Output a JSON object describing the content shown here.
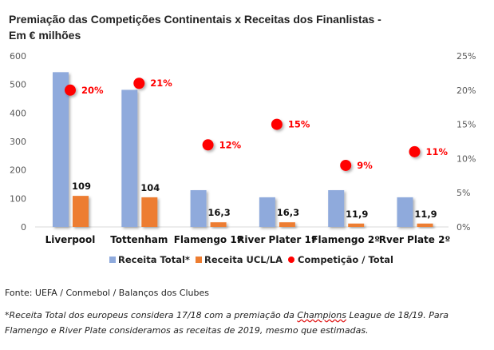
{
  "title_line1": "Premiação das Competições Continentais x Receitas dos Finanlistas -",
  "title_line2": "Em € milhões",
  "source": "Fonte: UEFA / Conmebol / Balanços dos Clubes",
  "note_part1": "*Receita Total dos europeus considera 17/18 com a premiação da ",
  "note_underlined": "Champions",
  "note_part2": " League de 18/19. Para Flamengo e River Plate consideramos as receitas de 2019, mesmo que estimadas.",
  "chart_data": {
    "type": "bar",
    "title": "Premiação das Competições Continentais x Receitas dos Finanlistas - Em € milhões",
    "categories": [
      "Liverpool",
      "Tottenham",
      "Flamengo 1º",
      "River Plater 1º",
      "Flamengo 2º",
      "Rver Plate 2º"
    ],
    "series": [
      {
        "name": "Receita Total*",
        "type": "bar",
        "axis": "left",
        "color": "#8faadc",
        "values": [
          543,
          481,
          129,
          104,
          129,
          104
        ]
      },
      {
        "name": "Receita UCL/LA",
        "type": "bar",
        "axis": "left",
        "color": "#ed7d31",
        "values": [
          109,
          104,
          16.3,
          16.3,
          11.9,
          11.9
        ],
        "labels": [
          "109",
          "104",
          "16,3",
          "16,3",
          "11,9",
          "11,9"
        ]
      },
      {
        "name": "Competição / Total",
        "type": "scatter",
        "axis": "right",
        "color": "#ff0000",
        "values": [
          0.2,
          0.21,
          0.12,
          0.15,
          0.09,
          0.11
        ],
        "labels": [
          "20%",
          "21%",
          "12%",
          "15%",
          "9%",
          "11%"
        ]
      }
    ],
    "y_left": {
      "min": 0,
      "max": 600,
      "ticks": [
        "0",
        "100",
        "200",
        "300",
        "400",
        "500",
        "600"
      ]
    },
    "y_right": {
      "min": 0,
      "max": 0.25,
      "ticks": [
        "0%",
        "5%",
        "10%",
        "15%",
        "20%",
        "25%"
      ]
    },
    "grid": false,
    "legend": "bottom"
  }
}
